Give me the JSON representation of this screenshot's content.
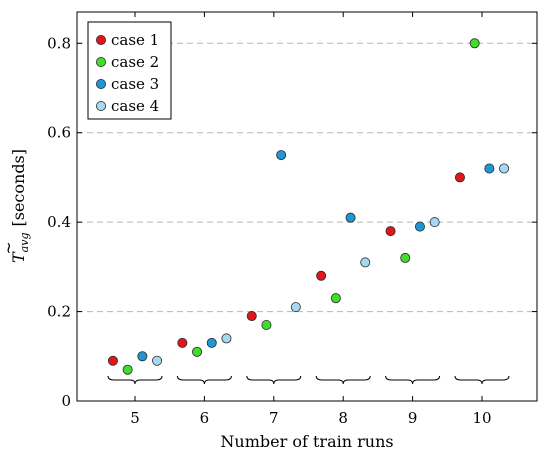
{
  "chart_data": {
    "type": "scatter",
    "xlabel": "Number of train runs",
    "ylabel": {
      "symbol": "T",
      "subscript": "avg",
      "unit": "[seconds]"
    },
    "categories": [
      "5",
      "6",
      "7",
      "8",
      "9",
      "10"
    ],
    "ylim": [
      0,
      0.87
    ],
    "yticks": [
      0,
      0.2,
      0.4,
      0.6,
      0.8
    ],
    "ytick_labels": [
      "0",
      "0.2",
      "0.4",
      "0.6",
      "0.8"
    ],
    "grid": "horizontal-dashed",
    "legend_position": "top-left",
    "group_brackets": true,
    "series": [
      {
        "name": "case 1",
        "color": "#e3151b",
        "values": [
          0.09,
          0.13,
          0.19,
          0.28,
          0.38,
          0.5
        ]
      },
      {
        "name": "case 2",
        "color": "#3fde2b",
        "values": [
          0.07,
          0.11,
          0.17,
          0.23,
          0.32,
          0.8
        ]
      },
      {
        "name": "case 3",
        "color": "#1f97d6",
        "values": [
          0.1,
          0.13,
          0.55,
          0.41,
          0.39,
          0.52
        ]
      },
      {
        "name": "case 4",
        "color": "#a6d8f0",
        "values": [
          0.09,
          0.14,
          0.21,
          0.31,
          0.4,
          0.52
        ]
      }
    ]
  }
}
